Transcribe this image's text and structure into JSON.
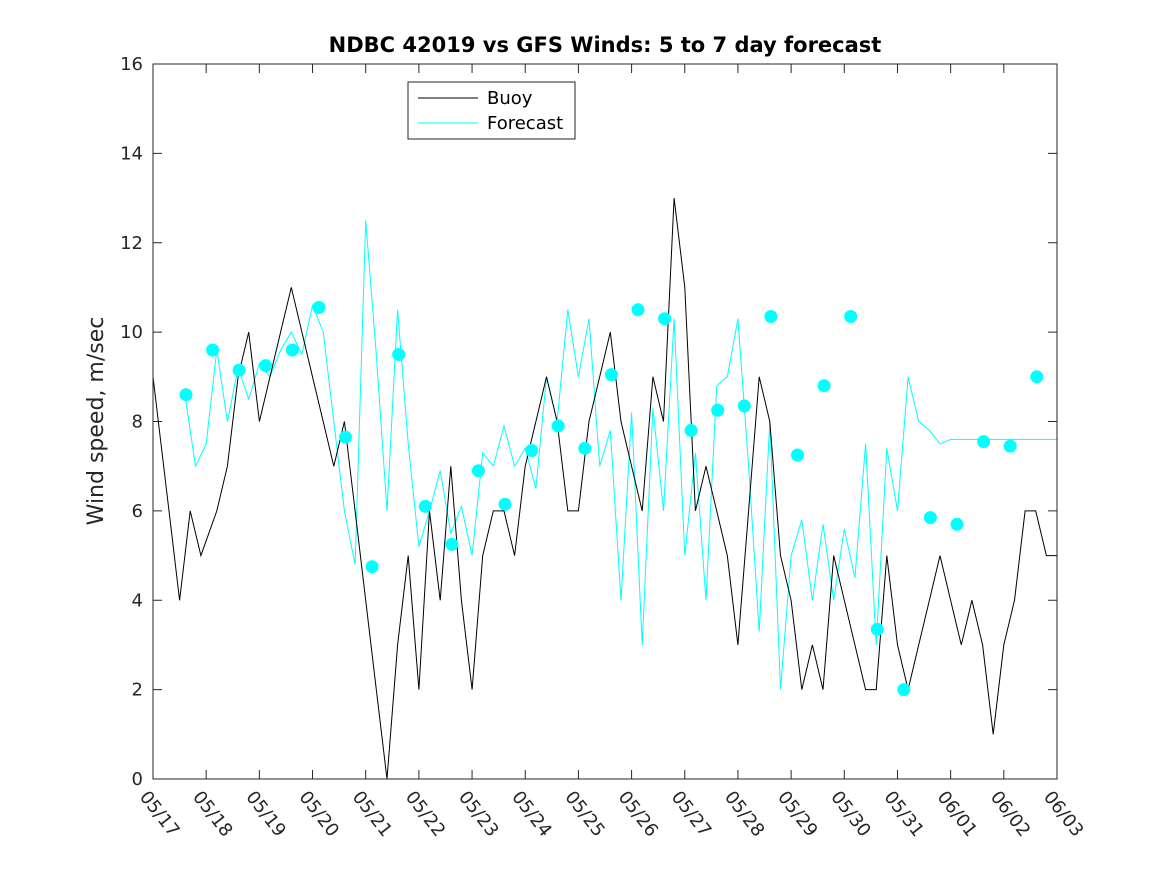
{
  "chart_data": {
    "type": "line",
    "title": "NDBC 42019 vs GFS Winds: 5 to 7 day forecast",
    "xlabel": "",
    "ylabel": "Wind speed, m/sec",
    "ylim": [
      0,
      16
    ],
    "yticks": [
      0,
      2,
      4,
      6,
      8,
      10,
      12,
      14,
      16
    ],
    "xlim": [
      "05/17",
      "06/03"
    ],
    "xtick_labels": [
      "05/17",
      "05/18",
      "05/19",
      "05/20",
      "05/21",
      "05/22",
      "05/23",
      "05/24",
      "05/25",
      "05/26",
      "05/27",
      "05/28",
      "05/29",
      "05/30",
      "05/31",
      "06/01",
      "06/02",
      "06/03"
    ],
    "legend": {
      "placement": "top-center",
      "entries": [
        "Buoy",
        "Forecast"
      ]
    },
    "colors": {
      "buoy": "#000000",
      "forecast": "#00ffff"
    },
    "grid": false,
    "series": [
      {
        "name": "Buoy",
        "x_days_from_0517": [
          0,
          0.3,
          0.5,
          0.7,
          0.9,
          1.2,
          1.4,
          1.6,
          1.8,
          2.0,
          2.2,
          2.4,
          2.6,
          2.8,
          3.0,
          3.2,
          3.4,
          3.6,
          3.8,
          4.0,
          4.2,
          4.4,
          4.6,
          4.8,
          5.0,
          5.2,
          5.4,
          5.6,
          5.8,
          6.0,
          6.2,
          6.4,
          6.6,
          6.8,
          7.0,
          7.2,
          7.4,
          7.6,
          7.8,
          8.0,
          8.2,
          8.4,
          8.6,
          8.8,
          9.0,
          9.2,
          9.4,
          9.6,
          9.8,
          10.0,
          10.2,
          10.4,
          10.6,
          10.8,
          11.0,
          11.2,
          11.4,
          11.6,
          11.8,
          12.0,
          12.2,
          12.4,
          12.6,
          12.8,
          13.0,
          13.2,
          13.4,
          13.6,
          13.8,
          14.0,
          14.2,
          14.4,
          14.6,
          14.8,
          15.0,
          15.2,
          15.4,
          15.6,
          15.8,
          16.0,
          16.2,
          16.4,
          16.6,
          16.8,
          17.0
        ],
        "values": [
          9,
          6,
          4,
          6,
          5,
          6,
          7,
          9,
          10,
          8,
          9,
          10,
          11,
          10,
          9,
          8,
          7,
          8,
          6,
          4,
          2,
          0,
          3,
          5,
          2,
          6,
          4,
          7,
          4,
          2,
          5,
          6,
          6,
          5,
          7,
          8,
          9,
          8,
          6,
          6,
          8,
          9,
          10,
          8,
          7,
          6,
          9,
          8,
          13,
          11,
          6,
          7,
          6,
          5,
          3,
          6,
          9,
          8,
          5,
          4,
          2,
          3,
          2,
          5,
          4,
          3,
          2,
          2,
          5,
          3,
          2,
          3,
          4,
          5,
          4,
          3,
          4,
          3,
          1,
          3,
          4,
          6,
          6,
          5,
          5
        ]
      },
      {
        "name": "Forecast",
        "x_days_from_0517": [
          0.6,
          0.8,
          1.0,
          1.2,
          1.4,
          1.6,
          1.8,
          2.0,
          2.2,
          2.4,
          2.6,
          2.8,
          3.0,
          3.2,
          3.4,
          3.6,
          3.8,
          4.0,
          4.2,
          4.4,
          4.6,
          4.8,
          5.0,
          5.2,
          5.4,
          5.6,
          5.8,
          6.0,
          6.2,
          6.4,
          6.6,
          6.8,
          7.0,
          7.2,
          7.4,
          7.6,
          7.8,
          8.0,
          8.2,
          8.4,
          8.6,
          8.8,
          9.0,
          9.2,
          9.4,
          9.6,
          9.8,
          10.0,
          10.2,
          10.4,
          10.6,
          10.8,
          11.0,
          11.2,
          11.4,
          11.6,
          11.8,
          12.0,
          12.2,
          12.4,
          12.6,
          12.8,
          13.0,
          13.2,
          13.4,
          13.6,
          13.8,
          14.0,
          14.2,
          14.4,
          14.6,
          14.8,
          15.0,
          15.2,
          15.4,
          15.6,
          15.8,
          16.0,
          16.2,
          16.4,
          16.6,
          16.8,
          17.0
        ],
        "values": [
          8.6,
          7,
          7.5,
          9.6,
          8,
          9.2,
          8.5,
          9.3,
          9,
          9.6,
          10,
          9.5,
          10.6,
          10,
          8,
          6,
          4.8,
          12.5,
          9.5,
          6,
          10.5,
          7.5,
          5.2,
          6,
          6.9,
          5.5,
          6.1,
          5,
          7.3,
          7,
          7.9,
          7,
          7.4,
          6.5,
          9,
          8,
          10.5,
          9,
          10.3,
          7,
          7.8,
          4,
          8.2,
          3,
          8.3,
          6,
          10.3,
          5,
          7.3,
          4,
          8.8,
          9,
          10.3,
          7,
          3.3,
          8,
          2,
          5,
          5.8,
          4,
          5.7,
          4,
          5.6,
          4.5,
          7.5,
          3,
          7.4,
          6,
          9,
          8,
          7.8,
          7.5,
          7.6,
          7.6,
          7.6,
          7.6,
          7.6,
          7.6,
          7.6,
          7.6,
          7.6,
          7.6,
          7.6
        ]
      },
      {
        "name": "",
        "x_days_from_0517": [
          0.62,
          1.12,
          1.62,
          2.12,
          2.62,
          3.12,
          3.62,
          4.12,
          4.62,
          5.12,
          5.62,
          6.12,
          6.62,
          7.12,
          7.62,
          8.12,
          8.62,
          9.12,
          9.62,
          10.12,
          10.62,
          11.12,
          11.62,
          12.12,
          12.62,
          13.12,
          13.62,
          14.12,
          14.62,
          15.12,
          15.62,
          16.12,
          16.62
        ],
        "values": [
          8.6,
          9.6,
          9.15,
          9.25,
          9.6,
          10.55,
          7.65,
          4.75,
          9.5,
          6.1,
          5.25,
          6.9,
          6.15,
          7.35,
          7.9,
          7.4,
          9.05,
          10.5,
          10.3,
          7.8,
          8.25,
          8.35,
          10.35,
          7.25,
          8.8,
          10.35,
          3.35,
          2.0,
          5.85,
          5.7,
          7.55,
          7.45,
          9.0
        ]
      }
    ]
  }
}
